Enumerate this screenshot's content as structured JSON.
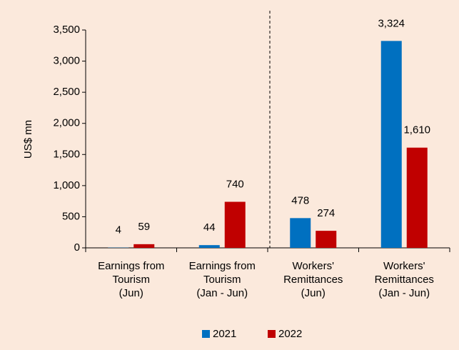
{
  "chart_data": {
    "type": "bar",
    "y_label": "US$ mn",
    "categories": [
      "Earnings from\nTourism\n(Jun)",
      "Earnings from\nTourism\n(Jan - Jun)",
      "Workers'\nRemittances\n(Jun)",
      "Workers'\nRemittances\n(Jan - Jun)"
    ],
    "series": [
      {
        "name": "2021",
        "color": "#0070c0",
        "values": [
          4,
          44,
          478,
          3324
        ],
        "value_labels": [
          "4",
          "44",
          "478",
          "3,324"
        ]
      },
      {
        "name": "2022",
        "color": "#c00000",
        "values": [
          59,
          740,
          274,
          1610
        ],
        "value_labels": [
          "59",
          "740",
          "274",
          "1,610"
        ]
      }
    ],
    "ylim": [
      0,
      3500
    ],
    "yticks": [
      0,
      500,
      {
        "value": 1000,
        "label": "1,000"
      },
      {
        "value": 1500,
        "label": "1,500"
      },
      {
        "value": 2000,
        "label": "2,000"
      },
      {
        "value": 2500,
        "label": "2,500"
      },
      {
        "value": 3000,
        "label": "3,000"
      },
      {
        "value": 3500,
        "label": "3,500"
      }
    ],
    "grid": false,
    "legend": "bottom"
  }
}
